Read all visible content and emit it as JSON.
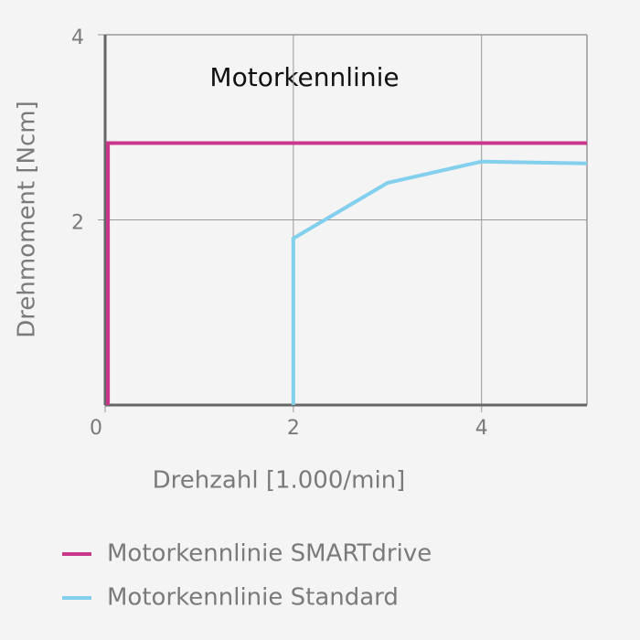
{
  "chart_data": {
    "type": "line",
    "title": "Motorkennlinie",
    "xlabel": "Drehzahl [1.000/min]",
    "ylabel": "Drehmoment [Ncm]",
    "xlim": [
      0,
      5.12
    ],
    "ylim": [
      0,
      4
    ],
    "xticks": [
      0,
      2,
      4
    ],
    "yticks": [
      2,
      4
    ],
    "grid": true,
    "series": [
      {
        "name": "Motorkennlinie SMARTdrive",
        "color": "#c8378a",
        "x": [
          0.03,
          0.03,
          5.12
        ],
        "values": [
          0,
          2.83,
          2.83
        ]
      },
      {
        "name": "Motorkennlinie Standard",
        "color": "#82cfee",
        "x": [
          2,
          2,
          3,
          4,
          5.12
        ],
        "values": [
          0,
          1.8,
          2.4,
          2.63,
          2.61
        ]
      }
    ]
  }
}
